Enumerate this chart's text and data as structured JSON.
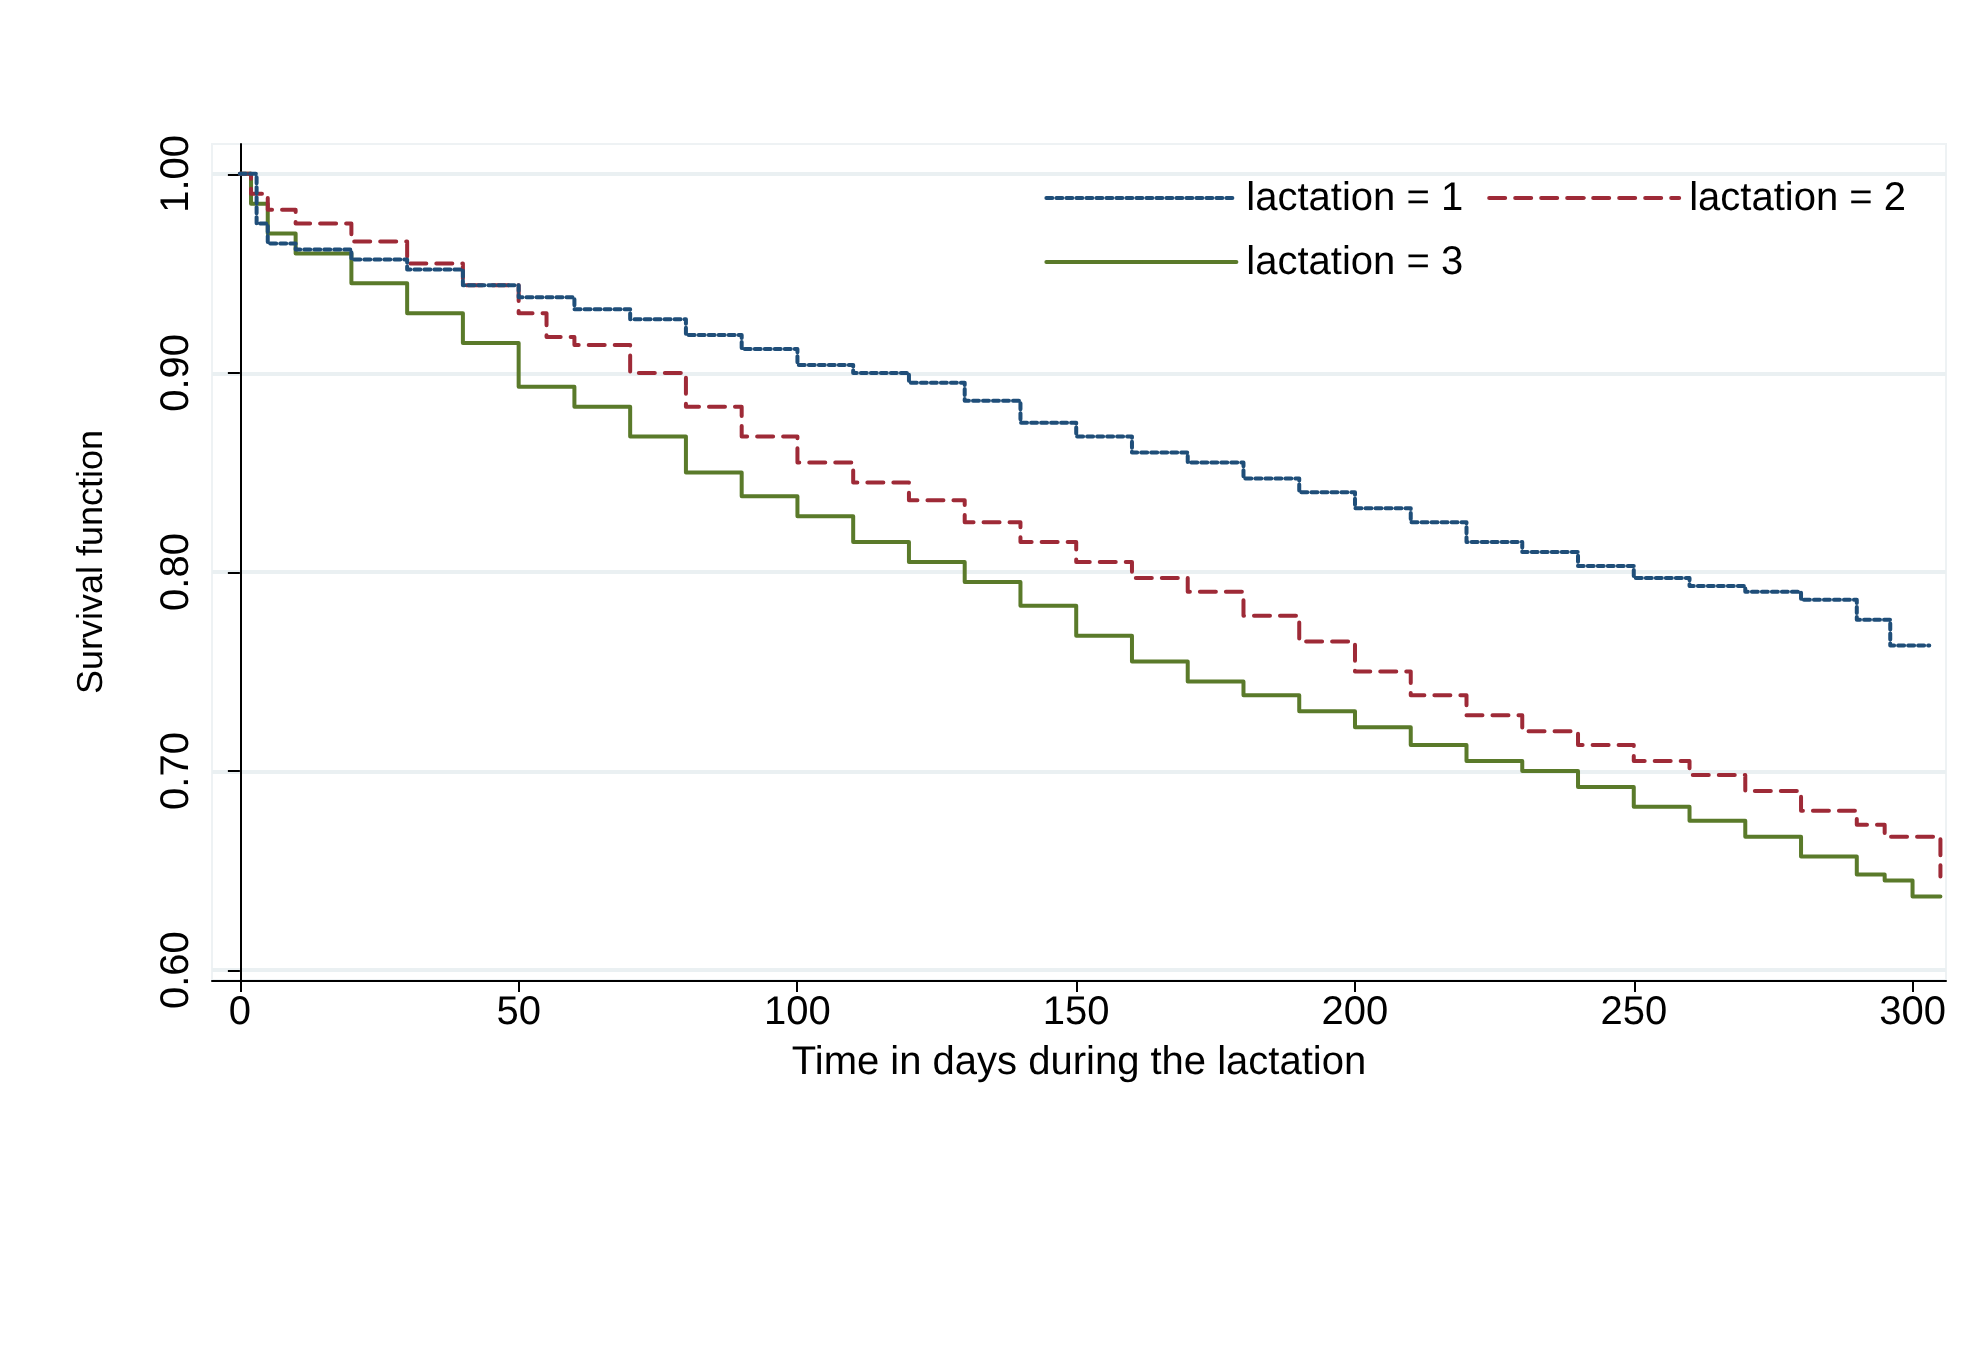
{
  "chart_data": {
    "type": "step",
    "xlabel": "Time in days during the lactation",
    "ylabel": "Survival function",
    "xlim": [
      -5,
      306
    ],
    "xticks": [
      0,
      50,
      100,
      150,
      200,
      250,
      300
    ],
    "ylim": [
      0.595,
      1.015
    ],
    "yticks": [
      {
        "value": 0.6,
        "label": "0.60"
      },
      {
        "value": 0.7,
        "label": "0.70"
      },
      {
        "value": 0.8,
        "label": "0.80"
      },
      {
        "value": 0.9,
        "label": "0.90"
      },
      {
        "value": 1,
        "label": "1.00"
      }
    ],
    "grid": "y",
    "legend": "top right",
    "series": [
      {
        "name": "lactation = 1",
        "color": "#1f4e79",
        "line_style": "dotted",
        "x": [
          0,
          3,
          5,
          10,
          20,
          30,
          40,
          50,
          60,
          70,
          80,
          90,
          100,
          110,
          120,
          130,
          140,
          150,
          160,
          170,
          180,
          190,
          200,
          210,
          220,
          230,
          240,
          250,
          260,
          270,
          280,
          290,
          296,
          303
        ],
        "values": [
          1,
          0.975,
          0.965,
          0.962,
          0.957,
          0.952,
          0.944,
          0.938,
          0.932,
          0.927,
          0.919,
          0.912,
          0.904,
          0.9,
          0.895,
          0.886,
          0.875,
          0.868,
          0.86,
          0.855,
          0.847,
          0.84,
          0.832,
          0.825,
          0.815,
          0.81,
          0.803,
          0.797,
          0.793,
          0.79,
          0.786,
          0.776,
          0.763,
          0.763
        ]
      },
      {
        "name": "lactation = 2",
        "color": "#9e2a37",
        "line_style": "dashed",
        "x": [
          0,
          2,
          5,
          10,
          20,
          30,
          40,
          50,
          55,
          60,
          70,
          80,
          90,
          100,
          110,
          120,
          130,
          140,
          150,
          160,
          170,
          180,
          190,
          200,
          210,
          220,
          230,
          240,
          250,
          260,
          270,
          280,
          290,
          295,
          304,
          305
        ],
        "values": [
          1,
          0.99,
          0.982,
          0.975,
          0.966,
          0.955,
          0.944,
          0.93,
          0.918,
          0.914,
          0.9,
          0.883,
          0.868,
          0.855,
          0.845,
          0.836,
          0.825,
          0.815,
          0.805,
          0.797,
          0.79,
          0.778,
          0.765,
          0.75,
          0.738,
          0.728,
          0.72,
          0.713,
          0.705,
          0.698,
          0.69,
          0.68,
          0.673,
          0.667,
          0.667,
          0.647
        ]
      },
      {
        "name": "lactation = 3",
        "color": "#5a7a2a",
        "line_style": "solid",
        "x": [
          0,
          2,
          5,
          10,
          20,
          30,
          40,
          50,
          60,
          70,
          80,
          90,
          100,
          110,
          120,
          130,
          140,
          150,
          160,
          170,
          180,
          190,
          200,
          210,
          220,
          230,
          240,
          250,
          260,
          270,
          280,
          290,
          295,
          300,
          305
        ],
        "values": [
          1,
          0.985,
          0.97,
          0.96,
          0.945,
          0.93,
          0.915,
          0.893,
          0.883,
          0.868,
          0.85,
          0.838,
          0.828,
          0.815,
          0.805,
          0.795,
          0.783,
          0.768,
          0.755,
          0.745,
          0.738,
          0.73,
          0.722,
          0.713,
          0.705,
          0.7,
          0.692,
          0.682,
          0.675,
          0.667,
          0.657,
          0.648,
          0.645,
          0.637,
          0.637
        ]
      }
    ]
  }
}
